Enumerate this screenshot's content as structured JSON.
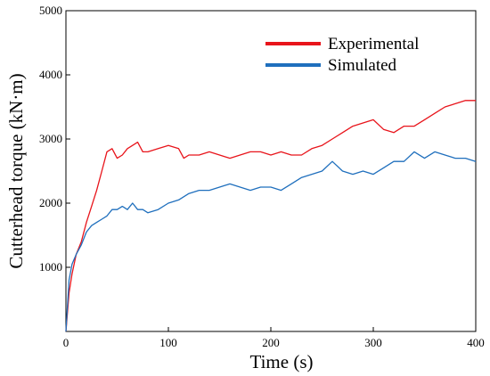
{
  "chart_data": {
    "type": "line",
    "title": "",
    "xlabel": "Time (s)",
    "ylabel": "Cutterhead torque (kN·m)",
    "xlim": [
      0,
      400
    ],
    "ylim": [
      0,
      5000
    ],
    "x_ticks": [
      0,
      100,
      200,
      300,
      400
    ],
    "y_ticks": [
      1000,
      2000,
      3000,
      4000,
      5000
    ],
    "grid": false,
    "legend_position": "top-right",
    "series": [
      {
        "name": "Experimental",
        "color": "#e8141b",
        "x": [
          0,
          3,
          6,
          10,
          15,
          20,
          25,
          30,
          35,
          40,
          45,
          50,
          55,
          60,
          65,
          70,
          75,
          80,
          90,
          100,
          110,
          115,
          120,
          130,
          140,
          150,
          160,
          170,
          180,
          190,
          200,
          210,
          220,
          230,
          240,
          250,
          260,
          270,
          280,
          290,
          300,
          310,
          320,
          330,
          340,
          350,
          360,
          370,
          380,
          390,
          400
        ],
        "y": [
          0,
          600,
          900,
          1200,
          1400,
          1700,
          1950,
          2200,
          2500,
          2800,
          2850,
          2700,
          2750,
          2850,
          2900,
          2950,
          2800,
          2800,
          2850,
          2900,
          2850,
          2700,
          2750,
          2750,
          2800,
          2750,
          2700,
          2750,
          2800,
          2800,
          2750,
          2800,
          2750,
          2750,
          2850,
          2900,
          3000,
          3100,
          3200,
          3250,
          3300,
          3150,
          3100,
          3200,
          3200,
          3300,
          3400,
          3500,
          3550,
          3600,
          3600
        ]
      },
      {
        "name": "Simulated",
        "color": "#1f6fbd",
        "x": [
          0,
          3,
          6,
          10,
          15,
          20,
          25,
          30,
          35,
          40,
          45,
          50,
          55,
          60,
          65,
          70,
          75,
          80,
          90,
          100,
          110,
          120,
          130,
          140,
          150,
          160,
          170,
          180,
          190,
          200,
          210,
          220,
          230,
          240,
          250,
          260,
          270,
          280,
          290,
          300,
          310,
          320,
          330,
          340,
          350,
          360,
          370,
          380,
          390,
          400
        ],
        "y": [
          0,
          800,
          1050,
          1200,
          1350,
          1550,
          1650,
          1700,
          1750,
          1800,
          1900,
          1900,
          1950,
          1900,
          2000,
          1900,
          1900,
          1850,
          1900,
          2000,
          2050,
          2150,
          2200,
          2200,
          2250,
          2300,
          2250,
          2200,
          2250,
          2250,
          2200,
          2300,
          2400,
          2450,
          2500,
          2650,
          2500,
          2450,
          2500,
          2450,
          2550,
          2650,
          2650,
          2800,
          2700,
          2800,
          2750,
          2700,
          2700,
          2650
        ]
      }
    ]
  }
}
